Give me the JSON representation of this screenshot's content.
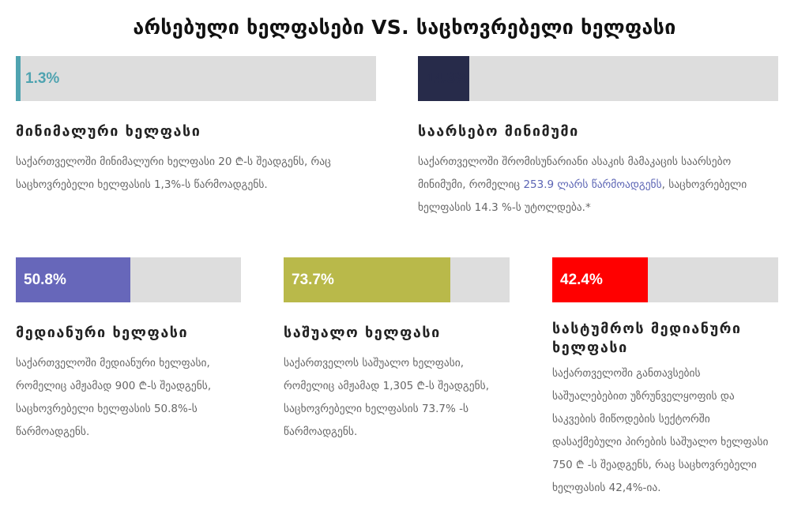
{
  "chart_data": {
    "type": "bar",
    "title": "არსებული ხელფასები VS. საცხოვრებელი ხელფასი",
    "categories": [
      "მინიმალური ხელფასი",
      "საარსებო მინიმუმი",
      "მედიანური ხელფასი",
      "საშუალო ხელფასი",
      "სასტუმროს მედიანური ხელფასი"
    ],
    "values": [
      1.3,
      14.3,
      50.8,
      73.7,
      42.4
    ],
    "ylim": [
      0,
      100
    ],
    "xlabel": "",
    "ylabel": "",
    "series": [
      {
        "value": 1.3,
        "label": "1.3%",
        "color": "#4fa3b0",
        "label_color": "#4fa3b0"
      },
      {
        "value": 14.3,
        "label": "14.3%",
        "color": "#272b4a",
        "label_color": "#272b4a"
      },
      {
        "value": 50.8,
        "label": "50.8%",
        "color": "#6767ba",
        "label_color": "#ffffff"
      },
      {
        "value": 73.7,
        "label": "73.7%",
        "color": "#b9b94a",
        "label_color": "#ffffff"
      },
      {
        "value": 42.4,
        "label": "42.4%",
        "color": "#ff0000",
        "label_color": "#ffffff"
      }
    ]
  },
  "cards": [
    {
      "heading": "მინიმალური ხელფასი",
      "desc": "საქართველოში მინიმალური ხელფასი 20 ₾-ს შეადგენს, რაც საცხოვრებელი ხელფასის 1,3%-ს წარმოადგენს."
    },
    {
      "heading": "საარსებო მინიმუმი",
      "desc_before": "საქართველოში შრომისუნარიანი ასაკის მამაკაცის საარსებო მინიმუმი, რომელიც ",
      "desc_link": "253.9 ლარს წარმოადგენს",
      "desc_after": ", საცხოვრებელი ხელფასის 14.3 %-ს უტოლდება.*"
    },
    {
      "heading": "მედიანური ხელფასი",
      "desc": "საქართველოში მედიანური ხელფასი, რომელიც ამჟამად 900 ₾-ს შეადგენს,  საცხოვრებელი ხელფასის 50.8%-ს წარმოადგენს."
    },
    {
      "heading": "საშუალო ხელფასი",
      "desc": "საქართველოს საშუალო ხელფასი, რომელიც ამჟამად 1,305 ₾-ს შეადგენს,  საცხოვრებელი ხელფასის 73.7% -ს წარმოადგენს."
    },
    {
      "heading": "სასტუმროს მედიანური ხელფასი",
      "desc": "საქართველოში განთავსების საშუალებებით უზრუნველყოფის და საკვების მიწოდების სექტორში დასაქმებული პირების საშუალო ხელფასი 750 ₾ -ს შეადგენს, რაც საცხოვრებელი ხელფასის 42,4%-ია."
    }
  ]
}
